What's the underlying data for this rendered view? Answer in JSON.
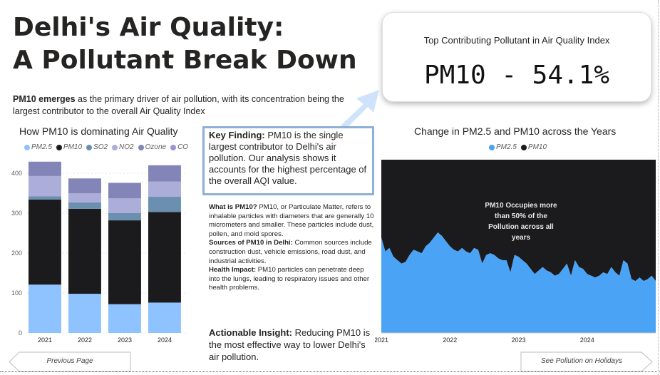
{
  "header": {
    "title_line1": "Delhi's Air Quality:",
    "title_line2": "A Pollutant Break Down",
    "intro_bold": "PM10 emerges",
    "intro_rest": " as the primary driver of air pollution, with its concentration being the largest contributor to the overall Air Quality Index"
  },
  "kpi": {
    "label": "Top Contributing Pollutant in Air Quality Index",
    "value": "PM10 - 54.1%"
  },
  "key_finding": {
    "bold": "Key Finding:",
    "text": " PM10 is the single largest contributor to Delhi's air pollution. Our analysis shows it accounts for the highest percentage of the overall AQI value."
  },
  "info": {
    "what_bold": "What is PM10?",
    "what_text": " PM10, or Particulate Matter, refers to inhalable particles with diameters that are generally 10 micrometers and smaller. These particles include dust, pollen, and mold spores.",
    "sources_bold": "Sources of PM10 in Delhi:",
    "sources_text": " Common sources include construction dust, vehicle emissions, road dust, and industrial activities.",
    "health_bold": "Health Impact:",
    "health_text": " PM10 particles can penetrate deep into the lungs, leading to respiratory issues and other health problems."
  },
  "actionable": {
    "bold": "Actionable Insight:",
    "text": " Reducing PM10 is the most effective way to lower Delhi's air pollution."
  },
  "nav": {
    "previous": "Previous Page",
    "next": "See Pollution on Holidays"
  },
  "colors": {
    "PM2.5": "#8fc3ff",
    "PM10": "#1b1a1c",
    "SO2": "#6b8fae",
    "NO2": "#acadd9",
    "Ozone": "#8385b8",
    "CO": "#9b95cf",
    "area_pm25": "#4aa3f5",
    "area_pm10": "#1b1a1c"
  },
  "chart_data": [
    {
      "type": "bar",
      "stacked": true,
      "title": "How PM10 is dominating Air Quality",
      "categories": [
        "2021",
        "2022",
        "2023",
        "2024"
      ],
      "ylim": [
        0,
        450
      ],
      "yticks": [
        0,
        100,
        200,
        300,
        400
      ],
      "grid": true,
      "legend": "top",
      "series": [
        {
          "name": "PM2.5",
          "values": [
            121,
            98,
            72,
            76
          ]
        },
        {
          "name": "PM10",
          "values": [
            213,
            213,
            210,
            227
          ]
        },
        {
          "name": "SO2",
          "values": [
            8,
            16,
            18,
            38
          ]
        },
        {
          "name": "NO2",
          "values": [
            51,
            23,
            37,
            38
          ]
        },
        {
          "name": "Ozone",
          "values": [
            36,
            37,
            39,
            41
          ]
        },
        {
          "name": "CO",
          "values": [
            0,
            0,
            0,
            0
          ]
        }
      ]
    },
    {
      "type": "area",
      "stacked": true,
      "title": "Change in PM2.5 and PM10 across the Years",
      "x_tick_labels": [
        "2021",
        "2022",
        "2023",
        "2024"
      ],
      "legend": "top",
      "annotation": "PM10 Occupies more than 50% of the Pollution across all years",
      "series": [
        {
          "name": "PM2.5",
          "values": [
            0.55,
            0.47,
            0.49,
            0.44,
            0.42,
            0.4,
            0.41,
            0.45,
            0.48,
            0.47,
            0.46,
            0.5,
            0.52,
            0.55,
            0.58,
            0.56,
            0.53,
            0.5,
            0.48,
            0.47,
            0.49,
            0.47,
            0.46,
            0.49,
            0.48,
            0.4,
            0.45,
            0.46,
            0.45,
            0.43,
            0.42,
            0.42,
            0.35,
            0.45,
            0.44,
            0.42,
            0.4,
            0.37,
            0.34,
            0.36,
            0.38,
            0.36,
            0.35,
            0.33,
            0.34,
            0.37,
            0.4,
            0.33,
            0.42,
            0.38,
            0.37,
            0.34,
            0.33,
            0.32,
            0.33,
            0.35,
            0.34,
            0.38,
            0.35,
            0.33,
            0.42,
            0.4,
            0.31,
            0.3,
            0.32,
            0.3,
            0.31,
            0.33,
            0.3
          ]
        },
        {
          "name": "PM10",
          "values": [
            0.45,
            0.53,
            0.51,
            0.56,
            0.58,
            0.6,
            0.59,
            0.55,
            0.52,
            0.53,
            0.54,
            0.5,
            0.48,
            0.45,
            0.42,
            0.44,
            0.47,
            0.5,
            0.52,
            0.53,
            0.51,
            0.53,
            0.54,
            0.51,
            0.52,
            0.6,
            0.55,
            0.54,
            0.55,
            0.57,
            0.58,
            0.58,
            0.65,
            0.55,
            0.56,
            0.58,
            0.6,
            0.63,
            0.66,
            0.64,
            0.62,
            0.64,
            0.65,
            0.67,
            0.66,
            0.63,
            0.6,
            0.67,
            0.58,
            0.62,
            0.63,
            0.66,
            0.67,
            0.68,
            0.67,
            0.65,
            0.66,
            0.62,
            0.65,
            0.67,
            0.58,
            0.6,
            0.69,
            0.7,
            0.68,
            0.7,
            0.69,
            0.67,
            0.7
          ]
        }
      ]
    }
  ]
}
